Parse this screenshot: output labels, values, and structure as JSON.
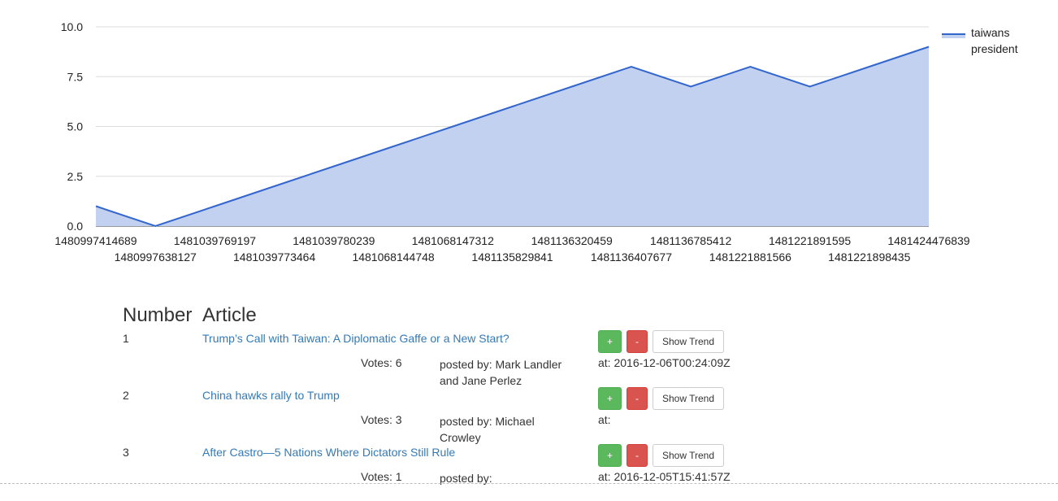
{
  "chart_data": {
    "type": "area",
    "x": [
      "1480997414689",
      "1480997638127",
      "1481039769197",
      "1481039773464",
      "1481039780239",
      "1481068144748",
      "1481068147312",
      "1481135829841",
      "1481136320459",
      "1481136407677",
      "1481136785412",
      "1481221881566",
      "1481221891595",
      "1481221898435",
      "1481424476839"
    ],
    "series": [
      {
        "name": "taiwans president",
        "values": [
          1,
          0,
          1,
          2,
          3,
          4,
          5,
          6,
          7,
          8,
          7,
          8,
          7,
          8,
          9
        ]
      }
    ],
    "y_ticks": [
      "0.0",
      "2.5",
      "5.0",
      "7.5",
      "10.0"
    ],
    "ylim": [
      0,
      10
    ],
    "grid": true,
    "legend": "top-right",
    "legend_label_lines": [
      "taiwans",
      "president"
    ],
    "colors": {
      "line": "#3366cc",
      "fill": "#c3d1f0",
      "grid": "#dddddd",
      "axis": "#333333"
    }
  },
  "table": {
    "headers": {
      "number": "Number",
      "article": "Article"
    },
    "buttons": {
      "plus": "+",
      "minus": "-",
      "trend": "Show Trend"
    },
    "rows": [
      {
        "number": "1",
        "title": "Trump’s Call with Taiwan: A Diplomatic Gaffe or a New Start?",
        "votes": "Votes: 6",
        "posted": "posted by: Mark Landler and Jane Perlez",
        "at": "at: 2016-12-06T00:24:09Z"
      },
      {
        "number": "2",
        "title": "China hawks rally to Trump",
        "votes": "Votes: 3",
        "posted": "posted by: Michael Crowley",
        "at": "at:"
      },
      {
        "number": "3",
        "title": "After Castro—5 Nations Where Dictators Still Rule",
        "votes": "Votes: 1",
        "posted": "posted by:",
        "at": "at: 2016-12-05T15:41:57Z"
      }
    ]
  }
}
